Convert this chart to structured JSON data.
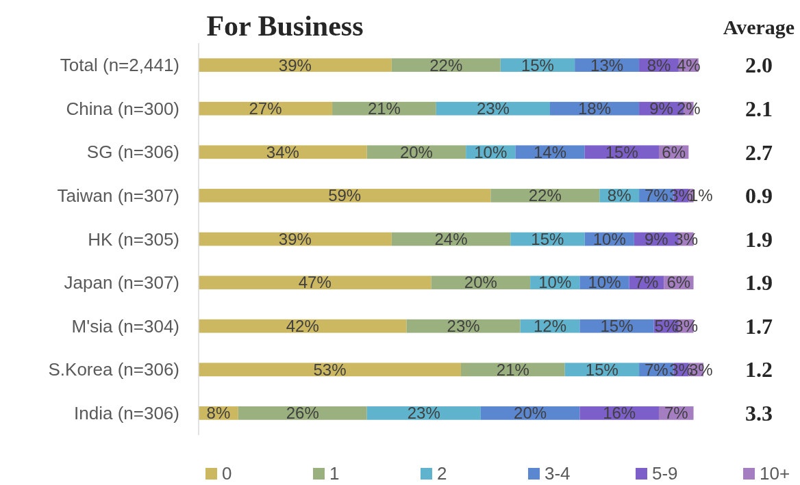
{
  "chart_data": {
    "type": "bar",
    "orientation": "horizontal",
    "stacked": true,
    "title": "For Business",
    "categories": [
      "Total (n=2,441)",
      "China (n=300)",
      "SG (n=306)",
      "Taiwan (n=307)",
      "HK (n=305)",
      "Japan (n=307)",
      "M'sia (n=304)",
      "S.Korea (n=306)",
      "India (n=306)"
    ],
    "series": [
      {
        "name": "0",
        "color": "#cdb862",
        "values": [
          39,
          27,
          34,
          59,
          39,
          47,
          42,
          53,
          8
        ],
        "value_labels": [
          "39%",
          "27%",
          "34%",
          "59%",
          "39%",
          "47%",
          "42%",
          "53%",
          "8%"
        ]
      },
      {
        "name": "1",
        "color": "#9bb07f",
        "values": [
          22,
          21,
          20,
          22,
          24,
          20,
          23,
          21,
          26
        ],
        "value_labels": [
          "22%",
          "21%",
          "20%",
          "22%",
          "24%",
          "20%",
          "23%",
          "21%",
          "26%"
        ]
      },
      {
        "name": "2",
        "color": "#5fb3cc",
        "values": [
          15,
          23,
          10,
          8,
          15,
          10,
          12,
          15,
          23
        ],
        "value_labels": [
          "15%",
          "23%",
          "10%",
          "8%",
          "15%",
          "10%",
          "12%",
          "15%",
          "23%"
        ]
      },
      {
        "name": "3-4",
        "color": "#5b86d0",
        "values": [
          13,
          18,
          14,
          7,
          10,
          10,
          15,
          7,
          20
        ],
        "value_labels": [
          "13%",
          "18%",
          "14%",
          "7%",
          "10%",
          "10%",
          "15%",
          "7%",
          "20%"
        ]
      },
      {
        "name": "5-9",
        "color": "#7c5fc9",
        "values": [
          8,
          9,
          15,
          3,
          9,
          7,
          5,
          3,
          16
        ],
        "value_labels": [
          "8%",
          "9%",
          "15%",
          "3%",
          "9%",
          "7%",
          "5%",
          "3%",
          "16%"
        ]
      },
      {
        "name": "10+",
        "color": "#a57ec2",
        "values": [
          4,
          2,
          6,
          1,
          3,
          6,
          3,
          3,
          7
        ],
        "value_labels": [
          "4%",
          "2%",
          "6%",
          "1%",
          "3%",
          "6%",
          "3%",
          "3%",
          "7%"
        ]
      }
    ],
    "xlim": [
      0,
      102
    ],
    "tick_labels": "y",
    "legend": "bottom",
    "annotations": [
      "Average",
      "2.0",
      "2.1",
      "2.7",
      "0.9",
      "1.9",
      "1.9",
      "1.7",
      "1.2",
      "3.3"
    ]
  }
}
